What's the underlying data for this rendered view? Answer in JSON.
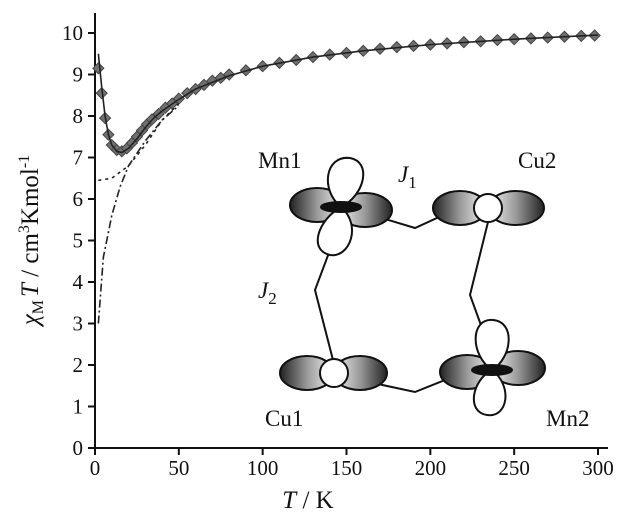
{
  "chart_data": {
    "type": "line",
    "xlabel_parts": [
      "T",
      " / K"
    ],
    "ylabel_parts": [
      "χ",
      "M",
      "T",
      " / cm",
      "3",
      "Kmol",
      "-1"
    ],
    "xlim": [
      0,
      300
    ],
    "xticks": [
      0,
      50,
      100,
      150,
      200,
      250,
      300
    ],
    "ylim": [
      0,
      10
    ],
    "yticks": [
      0,
      1,
      2,
      3,
      4,
      5,
      6,
      7,
      8,
      9,
      10
    ],
    "series": [
      {
        "style": "markers",
        "color": "#707070",
        "x": [
          2,
          4,
          6,
          8,
          10,
          13,
          16,
          19,
          22,
          25,
          28,
          31,
          34,
          38,
          42,
          46,
          50,
          55,
          60,
          65,
          70,
          75,
          80,
          90,
          100,
          110,
          120,
          130,
          140,
          150,
          160,
          170,
          180,
          190,
          200,
          210,
          220,
          230,
          240,
          250,
          260,
          270,
          280,
          290,
          298
        ],
        "values": [
          9.15,
          8.55,
          7.95,
          7.55,
          7.3,
          7.18,
          7.15,
          7.22,
          7.35,
          7.5,
          7.65,
          7.8,
          7.92,
          8.05,
          8.2,
          8.3,
          8.42,
          8.55,
          8.65,
          8.75,
          8.85,
          8.92,
          9.0,
          9.1,
          9.2,
          9.28,
          9.35,
          9.42,
          9.48,
          9.52,
          9.57,
          9.62,
          9.66,
          9.69,
          9.72,
          9.75,
          9.78,
          9.8,
          9.83,
          9.85,
          9.87,
          9.89,
          9.91,
          9.93,
          9.94
        ]
      },
      {
        "style": "solid",
        "color": "#222222",
        "x": [
          2,
          4,
          6,
          8,
          10,
          13,
          16,
          20,
          25,
          30,
          35,
          40,
          50,
          60,
          80,
          100,
          130,
          160,
          200,
          250,
          300
        ],
        "values": [
          9.5,
          8.7,
          8.0,
          7.55,
          7.3,
          7.15,
          7.12,
          7.22,
          7.45,
          7.72,
          7.95,
          8.12,
          8.4,
          8.65,
          8.97,
          9.2,
          9.42,
          9.57,
          9.72,
          9.85,
          9.95
        ]
      },
      {
        "style": "dashed",
        "color": "#222222",
        "x": [
          2,
          10,
          20,
          30,
          40,
          50
        ],
        "values": [
          6.45,
          6.5,
          6.8,
          7.3,
          7.9,
          8.3
        ]
      },
      {
        "style": "dashdot",
        "color": "#222222",
        "x": [
          2,
          5,
          10,
          15,
          20,
          30,
          40,
          50
        ],
        "values": [
          3.0,
          4.6,
          5.6,
          6.3,
          6.8,
          7.4,
          7.9,
          8.25
        ]
      }
    ],
    "annotations": [
      "Mn1",
      "Cu2",
      "Cu1",
      "Mn2"
    ],
    "coupling_labels": [
      {
        "symbol": "J",
        "subscript": "1"
      },
      {
        "symbol": "J",
        "subscript": "2"
      }
    ]
  }
}
